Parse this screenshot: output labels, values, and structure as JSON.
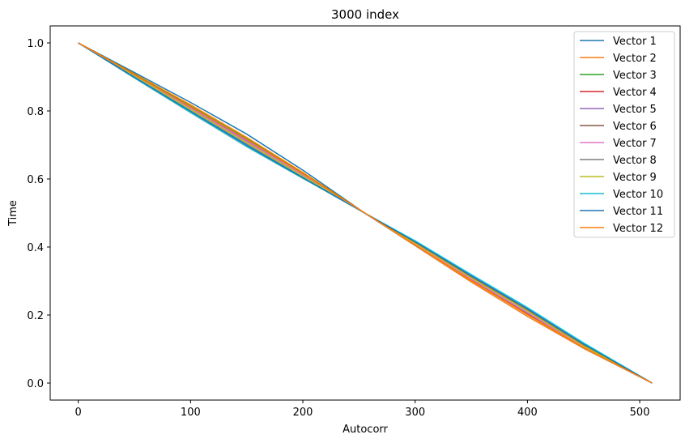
{
  "chart_data": {
    "type": "line",
    "title": "3000 index",
    "xlabel": "Autocorr",
    "ylabel": "Time",
    "xlim": [
      -25,
      536
    ],
    "ylim": [
      -0.05,
      1.05
    ],
    "xticks": [
      0,
      100,
      200,
      300,
      400,
      500
    ],
    "xtick_labels": [
      "0",
      "100",
      "200",
      "300",
      "400",
      "500"
    ],
    "yticks": [
      0.0,
      0.2,
      0.4,
      0.6,
      0.8,
      1.0
    ],
    "ytick_labels": [
      "0.0",
      "0.2",
      "0.4",
      "0.6",
      "0.8",
      "1.0"
    ],
    "grid": false,
    "legend_position": "top-right",
    "x": [
      0,
      50,
      100,
      150,
      200,
      255,
      300,
      350,
      400,
      450,
      511
    ],
    "series": [
      {
        "name": "Vector 1",
        "color": "#1f77b4",
        "values": [
          1.0,
          0.913,
          0.825,
          0.732,
          0.626,
          0.5,
          0.405,
          0.302,
          0.205,
          0.115,
          0.0
        ]
      },
      {
        "name": "Vector 2",
        "color": "#ff7f0e",
        "values": [
          1.0,
          0.909,
          0.818,
          0.722,
          0.619,
          0.5,
          0.404,
          0.297,
          0.196,
          0.102,
          0.0
        ]
      },
      {
        "name": "Vector 3",
        "color": "#2ca02c",
        "values": [
          1.0,
          0.907,
          0.814,
          0.718,
          0.616,
          0.5,
          0.406,
          0.302,
          0.202,
          0.104,
          0.0
        ]
      },
      {
        "name": "Vector 4",
        "color": "#d62728",
        "values": [
          1.0,
          0.905,
          0.811,
          0.715,
          0.614,
          0.5,
          0.407,
          0.304,
          0.204,
          0.105,
          0.0
        ]
      },
      {
        "name": "Vector 5",
        "color": "#9467bd",
        "values": [
          1.0,
          0.904,
          0.809,
          0.712,
          0.612,
          0.5,
          0.408,
          0.305,
          0.206,
          0.106,
          0.0
        ]
      },
      {
        "name": "Vector 6",
        "color": "#8c564b",
        "values": [
          1.0,
          0.902,
          0.805,
          0.707,
          0.609,
          0.5,
          0.41,
          0.308,
          0.21,
          0.108,
          0.0
        ]
      },
      {
        "name": "Vector 7",
        "color": "#e377c2",
        "values": [
          1.0,
          0.903,
          0.807,
          0.71,
          0.611,
          0.5,
          0.409,
          0.306,
          0.208,
          0.107,
          0.0
        ]
      },
      {
        "name": "Vector 8",
        "color": "#7f7f7f",
        "values": [
          1.0,
          0.901,
          0.802,
          0.703,
          0.607,
          0.5,
          0.413,
          0.312,
          0.215,
          0.111,
          0.0
        ]
      },
      {
        "name": "Vector 9",
        "color": "#bcbd22",
        "values": [
          1.0,
          0.902,
          0.804,
          0.706,
          0.608,
          0.5,
          0.411,
          0.309,
          0.211,
          0.109,
          0.0
        ]
      },
      {
        "name": "Vector 10",
        "color": "#17becf",
        "values": [
          1.0,
          0.897,
          0.795,
          0.695,
          0.602,
          0.5,
          0.418,
          0.319,
          0.222,
          0.118,
          0.0
        ]
      },
      {
        "name": "Vector 11",
        "color": "#1f77b4",
        "values": [
          1.0,
          0.899,
          0.799,
          0.699,
          0.604,
          0.5,
          0.415,
          0.315,
          0.218,
          0.114,
          0.0
        ]
      },
      {
        "name": "Vector 12",
        "color": "#ff7f0e",
        "values": [
          1.0,
          0.906,
          0.812,
          0.716,
          0.615,
          0.5,
          0.406,
          0.301,
          0.201,
          0.104,
          0.0
        ]
      }
    ]
  }
}
